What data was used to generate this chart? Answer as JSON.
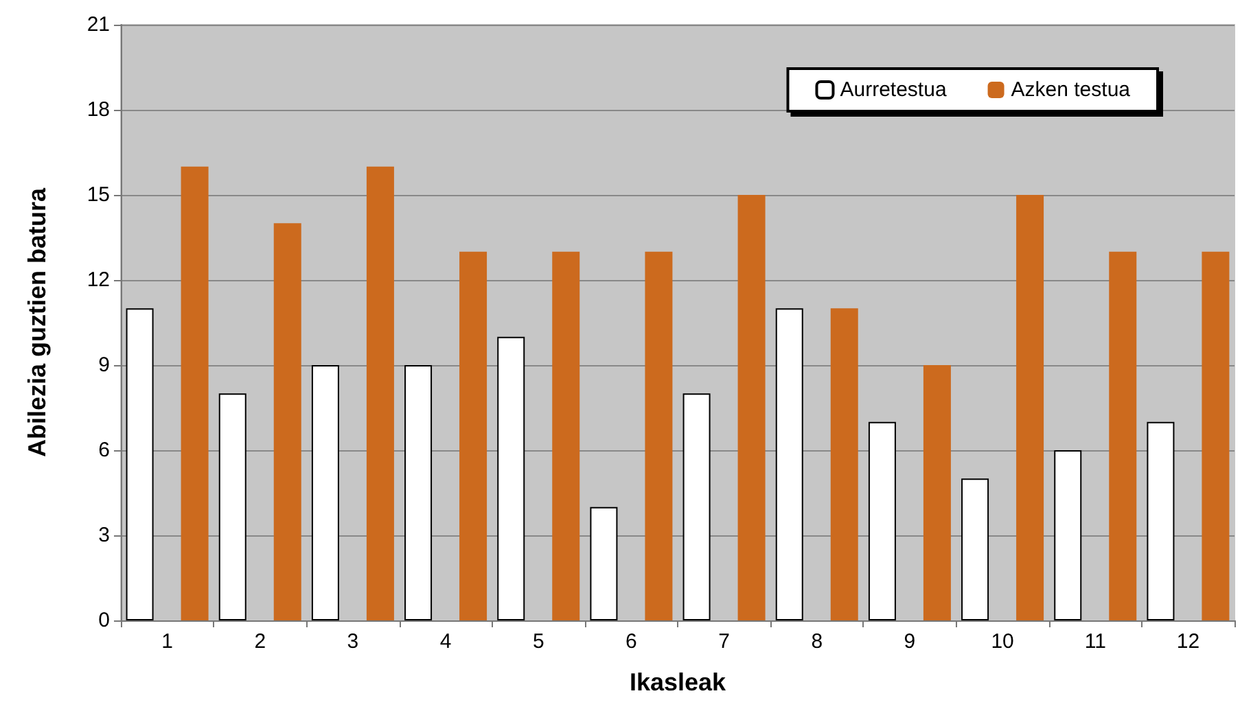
{
  "chart_data": {
    "type": "bar",
    "xlabel": "Ikasleak",
    "ylabel": "Abilezia guztien batura",
    "categories": [
      "1",
      "2",
      "3",
      "4",
      "5",
      "6",
      "7",
      "8",
      "9",
      "10",
      "11",
      "12"
    ],
    "series": [
      {
        "name": "Aurretestua",
        "color": "#ffffff",
        "values": [
          11,
          8,
          9,
          9,
          10,
          4,
          8,
          11,
          7,
          5,
          6,
          7
        ]
      },
      {
        "name": "Azken testua",
        "color": "#cc6a1e",
        "values": [
          16,
          14,
          16,
          13,
          13,
          13,
          15,
          11,
          9,
          15,
          13,
          13
        ]
      }
    ],
    "ylim": [
      0,
      21
    ],
    "yticks": [
      0,
      3,
      6,
      9,
      12,
      15,
      18,
      21
    ],
    "grid": "y",
    "legend": "top right"
  }
}
